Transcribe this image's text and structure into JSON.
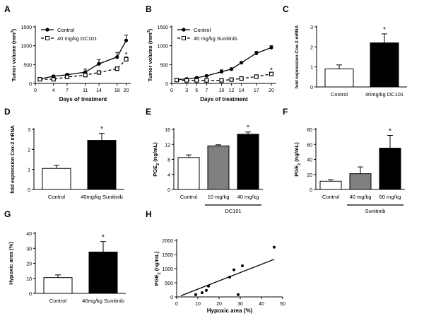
{
  "panels": {
    "A": {
      "letter": "A"
    },
    "B": {
      "letter": "B"
    },
    "C": {
      "letter": "C"
    },
    "D": {
      "letter": "D"
    },
    "E": {
      "letter": "E"
    },
    "F": {
      "letter": "F"
    },
    "G": {
      "letter": "G"
    },
    "H": {
      "letter": "H"
    }
  },
  "colors": {
    "black": "#000000",
    "white": "#ffffff",
    "gray": "#808080"
  },
  "chart_data": [
    {
      "id": "A",
      "type": "line",
      "xlabel": "Days of treatment",
      "ylabel": "Tumor volume (mm3)",
      "ylabel_sup": "3",
      "xticks": [
        0,
        4,
        7,
        11,
        14,
        18,
        20
      ],
      "ylim": [
        0,
        1500
      ],
      "yticks": [
        0,
        500,
        1000,
        1500
      ],
      "xlim": [
        0,
        21
      ],
      "series": [
        {
          "name": "Control",
          "style": "solid-filled-circle",
          "x": [
            1,
            4,
            7,
            11,
            14,
            18,
            20
          ],
          "y": [
            120,
            190,
            230,
            300,
            520,
            700,
            1140
          ],
          "err": [
            15,
            25,
            35,
            80,
            110,
            120,
            140
          ]
        },
        {
          "name": "40 mg/kg DC101",
          "style": "dashed-open-square",
          "x": [
            1,
            4,
            7,
            11,
            14,
            18,
            20
          ],
          "y": [
            110,
            110,
            170,
            220,
            290,
            390,
            640
          ],
          "err": [
            10,
            15,
            20,
            30,
            40,
            40,
            60
          ]
        }
      ],
      "annotations": [
        {
          "text": "*",
          "x": 20,
          "y": 780
        }
      ]
    },
    {
      "id": "B",
      "type": "line",
      "xlabel": "Days of treatment",
      "ylabel": "Tumor volume (mm3)",
      "ylabel_sup": "3",
      "xticks": [
        0,
        3,
        5,
        7,
        10,
        12,
        14,
        17,
        20
      ],
      "ylim": [
        0,
        1500
      ],
      "yticks": [
        0,
        500,
        1000,
        1500
      ],
      "xlim": [
        0,
        21
      ],
      "series": [
        {
          "name": "Control",
          "style": "solid-filled-circle",
          "x": [
            1,
            3,
            5,
            7,
            10,
            12,
            14,
            17,
            20
          ],
          "y": [
            100,
            120,
            150,
            200,
            310,
            380,
            550,
            800,
            950
          ],
          "err": [
            10,
            10,
            20,
            25,
            50,
            30,
            30,
            50,
            50
          ]
        },
        {
          "name": "40 mg/kg Sunitinib",
          "style": "dashed-open-square",
          "x": [
            1,
            3,
            5,
            7,
            10,
            12,
            14,
            17,
            20
          ],
          "y": [
            90,
            80,
            80,
            80,
            80,
            100,
            130,
            180,
            250
          ],
          "err": [
            10,
            10,
            10,
            10,
            10,
            15,
            20,
            40,
            40
          ]
        }
      ],
      "annotations": [
        {
          "text": "*",
          "x": 20,
          "y": 370
        }
      ]
    },
    {
      "id": "C",
      "type": "bar",
      "ylabel": "fold expression Cox-2 mRNA",
      "categories": [
        "Control",
        "40mg/kg DC101"
      ],
      "values": [
        0.9,
        2.2
      ],
      "err": [
        0.2,
        0.45
      ],
      "fills": [
        "#ffffff",
        "#000000"
      ],
      "ylim": [
        0,
        3
      ],
      "yticks": [
        0,
        1,
        2,
        3
      ],
      "annotations": [
        {
          "text": "*",
          "bar": 1
        }
      ]
    },
    {
      "id": "D",
      "type": "bar",
      "ylabel": "fold expression Cox-2 mRNA",
      "categories": [
        "Control",
        "40mg/kg Sunitinib"
      ],
      "values": [
        1.05,
        2.45
      ],
      "err": [
        0.15,
        0.35
      ],
      "fills": [
        "#ffffff",
        "#000000"
      ],
      "ylim": [
        0,
        3
      ],
      "yticks": [
        0,
        1,
        2,
        3
      ],
      "annotations": [
        {
          "text": "*",
          "bar": 1
        }
      ]
    },
    {
      "id": "E",
      "type": "bar",
      "ylabel": "PGE2 (ng/mL)",
      "ylabel_sub": "2",
      "categories": [
        "Control",
        "10 mg/kg",
        "40 mg/kg"
      ],
      "values": [
        8.5,
        11.6,
        14.7
      ],
      "err": [
        0.7,
        0.3,
        0.6
      ],
      "fills": [
        "#ffffff",
        "#808080",
        "#000000"
      ],
      "ylim": [
        0,
        16
      ],
      "yticks": [
        0,
        4,
        8,
        12,
        16
      ],
      "group_label": "DC101",
      "group_span": [
        1,
        2
      ],
      "annotations": [
        {
          "text": "*",
          "bar": 2
        }
      ]
    },
    {
      "id": "F",
      "type": "bar",
      "ylabel": "PGE2 (ng/mL)",
      "ylabel_sub": "2",
      "categories": [
        "Control",
        "40 mg/kg",
        "60 mg/kg"
      ],
      "values": [
        11,
        21,
        55
      ],
      "err": [
        2,
        9,
        17
      ],
      "fills": [
        "#ffffff",
        "#808080",
        "#000000"
      ],
      "ylim": [
        0,
        80
      ],
      "yticks": [
        0,
        20,
        40,
        60,
        80
      ],
      "group_label": "Sunitinib",
      "group_span": [
        1,
        2
      ],
      "annotations": [
        {
          "text": "*",
          "bar": 2
        }
      ]
    },
    {
      "id": "G",
      "type": "bar",
      "ylabel": "Hypoxic area (%)",
      "categories": [
        "Control",
        "40mg/kg Sunitinib"
      ],
      "values": [
        10.5,
        27.5
      ],
      "err": [
        1.8,
        7
      ],
      "fills": [
        "#ffffff",
        "#000000"
      ],
      "ylim": [
        0,
        40
      ],
      "yticks": [
        0,
        10,
        20,
        30,
        40
      ],
      "annotations": [
        {
          "text": "*",
          "bar": 1
        }
      ]
    },
    {
      "id": "H",
      "type": "scatter",
      "xlabel": "Hypoxic area (%)",
      "ylabel": "PGE2 (ng/mL)",
      "ylabel_sub": "2",
      "xlim": [
        0,
        50
      ],
      "xticks": [
        0,
        10,
        20,
        30,
        40,
        50
      ],
      "ylim": [
        0,
        2000
      ],
      "yticks": [
        0,
        500,
        1000,
        1500,
        2000
      ],
      "points": [
        [
          9,
          80
        ],
        [
          12,
          150
        ],
        [
          14,
          230
        ],
        [
          15,
          380
        ],
        [
          25,
          700
        ],
        [
          27,
          960
        ],
        [
          29,
          80
        ],
        [
          31,
          1100
        ],
        [
          46,
          1760
        ]
      ],
      "fit": [
        [
          2,
          40
        ],
        [
          46,
          1330
        ]
      ]
    }
  ]
}
